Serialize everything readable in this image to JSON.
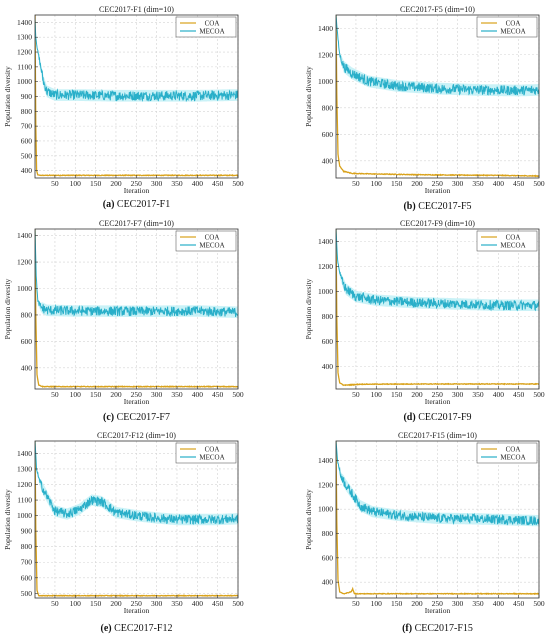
{
  "figure": {
    "panels": [
      {
        "caption_letter": "(a)",
        "caption_text": "CEC2017-F1",
        "title": "CEC2017-F1 (dim=10)"
      },
      {
        "caption_letter": "(b)",
        "caption_text": "CEC2017-F5",
        "title": "CEC2017-F5 (dim=10)"
      },
      {
        "caption_letter": "(c)",
        "caption_text": "CEC2017-F7",
        "title": "CEC2017-F7 (dim=10)"
      },
      {
        "caption_letter": "(d)",
        "caption_text": "CEC2017-F9",
        "title": "CEC2017-F9 (dim=10)"
      },
      {
        "caption_letter": "(e)",
        "caption_text": "CEC2017-F12",
        "title": "CEC2017-F12 (dim=10)"
      },
      {
        "caption_letter": "(f)",
        "caption_text": "CEC2017-F15",
        "title": "CEC2017-F15 (dim=10)"
      }
    ],
    "colors": {
      "COA": "#d9a21b",
      "MECOA": "#29afc9",
      "MECOA_band": "#bdeff5",
      "grid": "#d3d3d3"
    }
  },
  "chart_data": [
    {
      "type": "line",
      "title": "CEC2017-F1 (dim=10)",
      "xlabel": "Iteration",
      "ylabel": "Population diversity",
      "xlim": [
        1,
        500
      ],
      "ylim": [
        350,
        1450
      ],
      "xticks": [
        50,
        100,
        150,
        200,
        250,
        300,
        350,
        400,
        450,
        500
      ],
      "yticks": [
        400,
        500,
        600,
        700,
        800,
        900,
        1000,
        1100,
        1200,
        1300,
        1400
      ],
      "legend_position": "top-right",
      "series": [
        {
          "name": "COA",
          "points": [
            [
              1,
              1450
            ],
            [
              3,
              700
            ],
            [
              5,
              400
            ],
            [
              8,
              370
            ],
            [
              15,
              368
            ],
            [
              500,
              368
            ]
          ]
        },
        {
          "name": "MECOA",
          "points": [
            [
              1,
              1420
            ],
            [
              3,
              1300
            ],
            [
              8,
              1200
            ],
            [
              15,
              1100
            ],
            [
              22,
              1000
            ],
            [
              30,
              935
            ],
            [
              50,
              910
            ],
            [
              100,
              910
            ],
            [
              200,
              905
            ],
            [
              300,
              905
            ],
            [
              400,
              905
            ],
            [
              500,
              910
            ]
          ]
        }
      ]
    },
    {
      "type": "line",
      "title": "CEC2017-F5 (dim=10)",
      "xlabel": "Iteration",
      "ylabel": "Population diversity",
      "xlim": [
        1,
        500
      ],
      "ylim": [
        270,
        1500
      ],
      "xticks": [
        50,
        100,
        150,
        200,
        250,
        300,
        350,
        400,
        450,
        500
      ],
      "yticks": [
        400,
        600,
        800,
        1000,
        1200,
        1400
      ],
      "legend_position": "top-right",
      "series": [
        {
          "name": "COA",
          "points": [
            [
              1,
              1500
            ],
            [
              3,
              900
            ],
            [
              6,
              450
            ],
            [
              10,
              360
            ],
            [
              20,
              320
            ],
            [
              40,
              305
            ],
            [
              100,
              300
            ],
            [
              200,
              295
            ],
            [
              300,
              292
            ],
            [
              400,
              290
            ],
            [
              500,
              285
            ]
          ]
        },
        {
          "name": "MECOA",
          "points": [
            [
              1,
              1500
            ],
            [
              5,
              1350
            ],
            [
              10,
              1200
            ],
            [
              20,
              1110
            ],
            [
              40,
              1060
            ],
            [
              80,
              1000
            ],
            [
              150,
              965
            ],
            [
              250,
              945
            ],
            [
              350,
              935
            ],
            [
              450,
              930
            ],
            [
              500,
              935
            ]
          ]
        }
      ]
    },
    {
      "type": "line",
      "title": "CEC2017-F7 (dim=10)",
      "xlabel": "Iteration",
      "ylabel": "Population diversity",
      "xlim": [
        1,
        500
      ],
      "ylim": [
        240,
        1450
      ],
      "xticks": [
        50,
        100,
        150,
        200,
        250,
        300,
        350,
        400,
        450,
        500
      ],
      "yticks": [
        400,
        600,
        800,
        1000,
        1200,
        1400
      ],
      "legend_position": "top-right",
      "series": [
        {
          "name": "COA",
          "points": [
            [
              1,
              1450
            ],
            [
              3,
              800
            ],
            [
              6,
              350
            ],
            [
              10,
              270
            ],
            [
              20,
              258
            ],
            [
              500,
              258
            ]
          ]
        },
        {
          "name": "MECOA",
          "points": [
            [
              1,
              1450
            ],
            [
              4,
              1100
            ],
            [
              8,
              900
            ],
            [
              15,
              860
            ],
            [
              30,
              835
            ],
            [
              100,
              830
            ],
            [
              200,
              828
            ],
            [
              300,
              828
            ],
            [
              400,
              830
            ],
            [
              500,
              820
            ]
          ]
        }
      ]
    },
    {
      "type": "line",
      "title": "CEC2017-F9 (dim=10)",
      "xlabel": "Iteration",
      "ylabel": "Population diversity",
      "xlim": [
        1,
        500
      ],
      "ylim": [
        220,
        1500
      ],
      "xticks": [
        50,
        100,
        150,
        200,
        250,
        300,
        350,
        400,
        450,
        500
      ],
      "yticks": [
        400,
        600,
        800,
        1000,
        1200,
        1400
      ],
      "legend_position": "top-right",
      "series": [
        {
          "name": "COA",
          "points": [
            [
              1,
              1500
            ],
            [
              3,
              800
            ],
            [
              6,
              350
            ],
            [
              10,
              270
            ],
            [
              20,
              250
            ],
            [
              60,
              258
            ],
            [
              200,
              260
            ],
            [
              500,
              260
            ]
          ]
        },
        {
          "name": "MECOA",
          "points": [
            [
              1,
              1500
            ],
            [
              5,
              1250
            ],
            [
              12,
              1120
            ],
            [
              25,
              1020
            ],
            [
              50,
              960
            ],
            [
              100,
              930
            ],
            [
              200,
              910
            ],
            [
              300,
              900
            ],
            [
              400,
              890
            ],
            [
              500,
              890
            ]
          ]
        }
      ]
    },
    {
      "type": "line",
      "title": "CEC2017-F12 (dim=10)",
      "xlabel": "Iteration",
      "ylabel": "Population diversity",
      "xlim": [
        1,
        500
      ],
      "ylim": [
        470,
        1480
      ],
      "xticks": [
        50,
        100,
        150,
        200,
        250,
        300,
        350,
        400,
        450,
        500
      ],
      "yticks": [
        500,
        600,
        700,
        800,
        900,
        1000,
        1100,
        1200,
        1300,
        1400
      ],
      "legend_position": "top-right",
      "series": [
        {
          "name": "COA",
          "points": [
            [
              1,
              1480
            ],
            [
              3,
              900
            ],
            [
              6,
              520
            ],
            [
              10,
              485
            ],
            [
              500,
              485
            ]
          ]
        },
        {
          "name": "MECOA",
          "points": [
            [
              1,
              1480
            ],
            [
              5,
              1300
            ],
            [
              12,
              1220
            ],
            [
              25,
              1150
            ],
            [
              50,
              1030
            ],
            [
              80,
              1010
            ],
            [
              110,
              1040
            ],
            [
              140,
              1100
            ],
            [
              165,
              1090
            ],
            [
              200,
              1020
            ],
            [
              250,
              1000
            ],
            [
              300,
              985
            ],
            [
              350,
              975
            ],
            [
              400,
              975
            ],
            [
              450,
              975
            ],
            [
              500,
              980
            ]
          ]
        }
      ]
    },
    {
      "type": "line",
      "title": "CEC2017-F15 (dim=10)",
      "xlabel": "Iteration",
      "ylabel": "Population diversity",
      "xlim": [
        1,
        500
      ],
      "ylim": [
        270,
        1560
      ],
      "xticks": [
        50,
        100,
        150,
        200,
        250,
        300,
        350,
        400,
        450,
        500
      ],
      "yticks": [
        400,
        600,
        800,
        1000,
        1200,
        1400
      ],
      "legend_position": "top-right",
      "series": [
        {
          "name": "COA",
          "points": [
            [
              1,
              1560
            ],
            [
              3,
              900
            ],
            [
              6,
              420
            ],
            [
              10,
              320
            ],
            [
              20,
              305
            ],
            [
              38,
              320
            ],
            [
              42,
              345
            ],
            [
              46,
              305
            ],
            [
              60,
              305
            ],
            [
              500,
              305
            ]
          ]
        },
        {
          "name": "MECOA",
          "points": [
            [
              1,
              1560
            ],
            [
              5,
              1400
            ],
            [
              12,
              1280
            ],
            [
              25,
              1200
            ],
            [
              40,
              1130
            ],
            [
              60,
              1030
            ],
            [
              90,
              980
            ],
            [
              150,
              950
            ],
            [
              250,
              925
            ],
            [
              350,
              920
            ],
            [
              450,
              910
            ],
            [
              500,
              905
            ]
          ]
        }
      ]
    }
  ]
}
